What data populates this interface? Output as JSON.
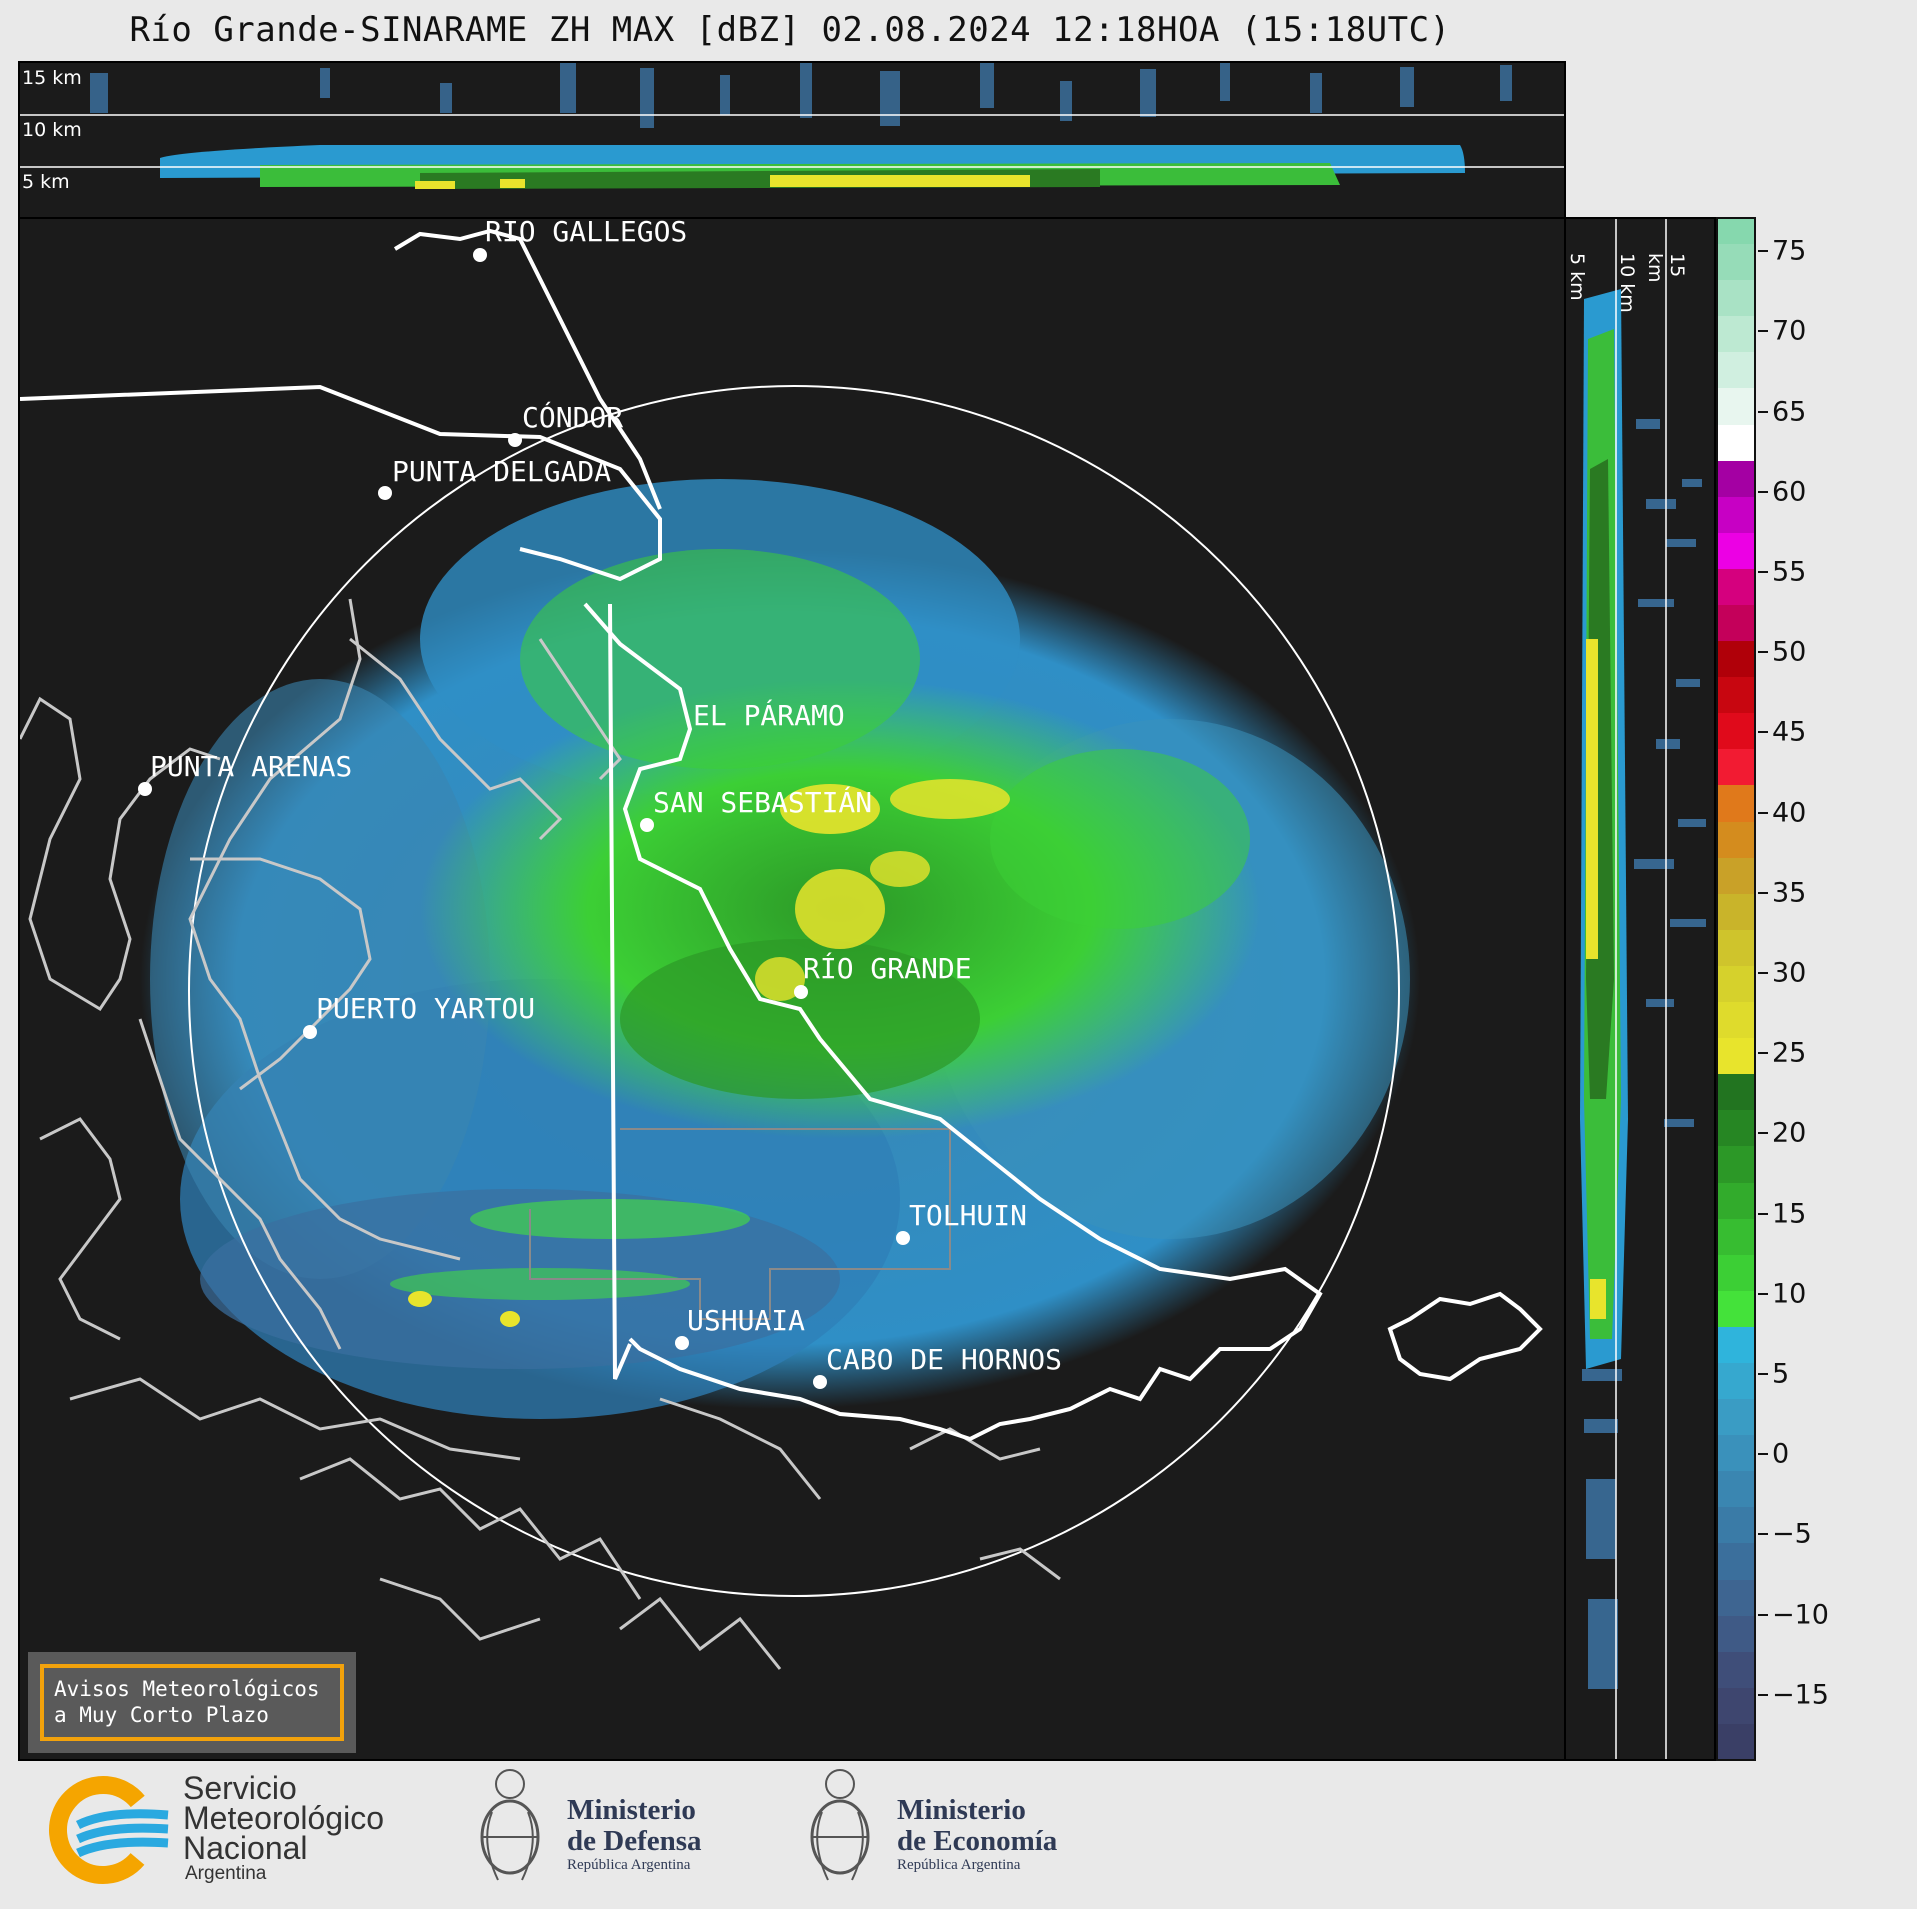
{
  "title": "Río Grande-SINARAME ZH MAX [dBZ] 02.08.2024 12:18HOA (15:18UTC)",
  "top_section": {
    "height_labels": [
      "15 km",
      "10 km",
      "5 km"
    ]
  },
  "side_section": {
    "height_labels": [
      "5 km",
      "10 km",
      "15 km"
    ]
  },
  "colorbar": {
    "unit": "dBZ",
    "range": [
      -19,
      77
    ],
    "ticks": [
      "75",
      "70",
      "65",
      "60",
      "55",
      "50",
      "45",
      "40",
      "35",
      "30",
      "25",
      "20",
      "15",
      "10",
      "5",
      "0",
      "−5",
      "−10",
      "−15"
    ],
    "colors": [
      "#3a3f66",
      "#3e466f",
      "#3f4e79",
      "#3f5a86",
      "#3e6591",
      "#3b6f9c",
      "#3a7ba7",
      "#3a86b1",
      "#3a91bb",
      "#3a9cc4",
      "#36a8cf",
      "#2fb4dc",
      "#44e23a",
      "#3ccf35",
      "#37bd31",
      "#32ab2c",
      "#2c9827",
      "#268623",
      "#227420",
      "#e8e42c",
      "#dfdb2c",
      "#d6d12c",
      "#cfc42c",
      "#c9b42a",
      "#c9a128",
      "#d48c1e",
      "#e0791b",
      "#f21b32",
      "#e00a1b",
      "#c80610",
      "#b00009",
      "#c4005a",
      "#d5007e",
      "#ec00e4",
      "#c700c4",
      "#a400a3",
      "#ffffff",
      "#e8f6ef",
      "#d0efe0",
      "#bde9d2",
      "#a9e2c5",
      "#96dcb8",
      "#86d8ae"
    ],
    "color_step_dbz": 2.25
  },
  "map": {
    "range_ring": "circle",
    "cities": [
      {
        "name": "RÍO GALLEGOS"
      },
      {
        "name": "CÓNDOR"
      },
      {
        "name": "PUNTA DELGADA"
      },
      {
        "name": "EL PÁRAMO"
      },
      {
        "name": "PUNTA ARENAS"
      },
      {
        "name": "SAN SEBASTIÁN"
      },
      {
        "name": "RÍO GRANDE"
      },
      {
        "name": "PUERTO YARTOU"
      },
      {
        "name": "TOLHUIN"
      },
      {
        "name": "USHUAIA"
      },
      {
        "name": "CABO DE HORNOS"
      }
    ]
  },
  "avisos": {
    "line1": "Avisos Meteorológicos",
    "line2": "a Muy Corto Plazo"
  },
  "logos": {
    "smn_line1": "Servicio",
    "smn_line2": "Meteorológico",
    "smn_line3": "Nacional",
    "smn_country": "Argentina",
    "defensa_line1": "Ministerio",
    "defensa_line2": "de Defensa",
    "defensa_sub": "República Argentina",
    "economia_line1": "Ministerio",
    "economia_line2": "de Economía",
    "economia_sub": "República Argentina"
  }
}
